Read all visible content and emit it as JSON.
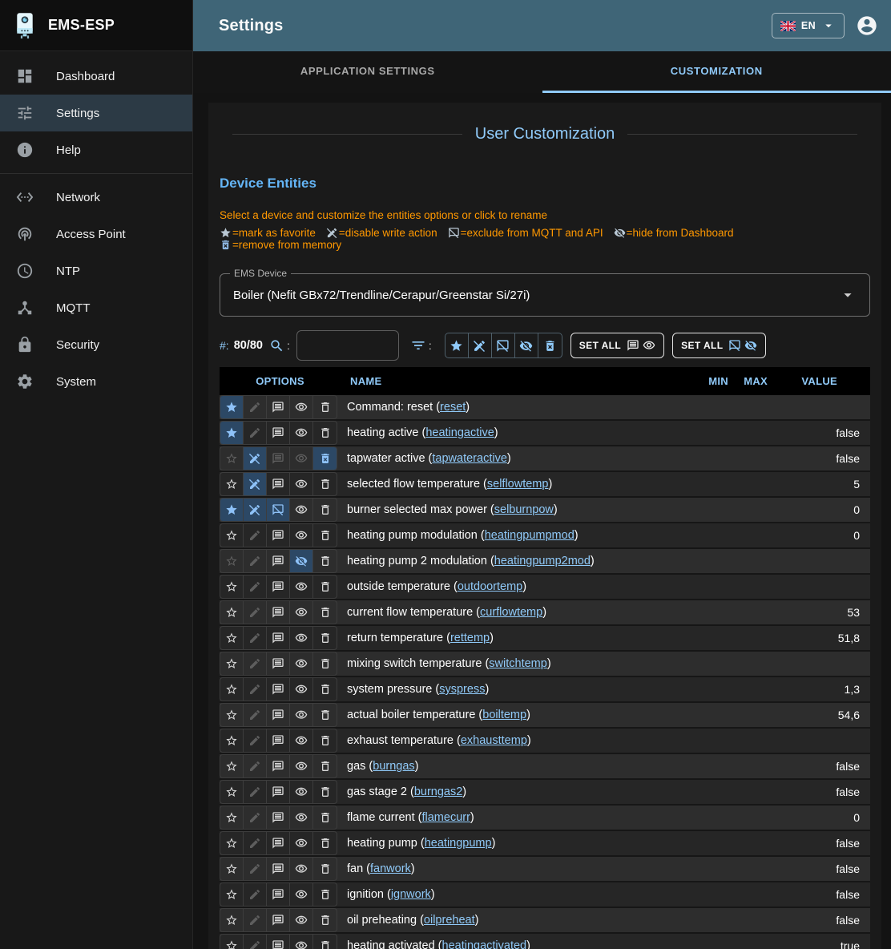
{
  "app": {
    "title": "EMS-ESP"
  },
  "topbar": {
    "title": "Settings",
    "language": "EN"
  },
  "sidebar": {
    "items": [
      {
        "label": "Dashboard",
        "icon": "dashboard-icon",
        "active": false,
        "divider_before": false
      },
      {
        "label": "Settings",
        "icon": "tune-icon",
        "active": true,
        "divider_before": false
      },
      {
        "label": "Help",
        "icon": "info-icon",
        "active": false,
        "divider_before": false
      },
      {
        "label": "Network",
        "icon": "network-icon",
        "active": false,
        "divider_before": true
      },
      {
        "label": "Access Point",
        "icon": "access-point-icon",
        "active": false,
        "divider_before": false
      },
      {
        "label": "NTP",
        "icon": "ntp-icon",
        "active": false,
        "divider_before": false
      },
      {
        "label": "MQTT",
        "icon": "mqtt-icon",
        "active": false,
        "divider_before": false
      },
      {
        "label": "Security",
        "icon": "security-icon",
        "active": false,
        "divider_before": false
      },
      {
        "label": "System",
        "icon": "system-icon",
        "active": false,
        "divider_before": false
      }
    ]
  },
  "tabs": [
    {
      "label": "APPLICATION SETTINGS",
      "active": false
    },
    {
      "label": "CUSTOMIZATION",
      "active": true
    }
  ],
  "page": {
    "title": "User Customization",
    "section_title": "Device Entities",
    "hint": "Select a device and customize the entities options or click to rename",
    "legend": [
      {
        "icon": "star-icon",
        "label": "=mark as favorite"
      },
      {
        "icon": "edit-off-icon",
        "label": "=disable write action"
      },
      {
        "icon": "comment-off-icon",
        "label": "=exclude from MQTT and API"
      },
      {
        "icon": "eye-off-icon",
        "label": "=hide from Dashboard"
      },
      {
        "icon": "delete-forever-icon",
        "label": "=remove from memory"
      }
    ],
    "device_select": {
      "label": "EMS Device",
      "value": "Boiler (Nefit GBx72/Trendline/Cerapur/Greenstar Si/27i)"
    },
    "toolbar": {
      "count_label": "#:",
      "count": "80/80",
      "search_colon": ":",
      "filter_colon": ":",
      "search_value": "",
      "toggles": [
        "star-icon",
        "edit-off-icon",
        "comment-off-icon",
        "eye-off-icon",
        "delete-forever-icon"
      ],
      "set_all_buttons": [
        {
          "label": "SET ALL",
          "icons": [
            "comment-icon",
            "eye-icon"
          ],
          "style": "plain"
        },
        {
          "label": "SET ALL",
          "icons": [
            "comment-off-icon",
            "eye-off-icon"
          ],
          "style": "accent"
        }
      ]
    }
  },
  "table": {
    "headers": {
      "options": "OPTIONS",
      "name": "NAME",
      "min": "MIN",
      "max": "MAX",
      "value": "VALUE"
    },
    "rows": [
      {
        "name": "Command: reset",
        "shortname": "reset",
        "min": "",
        "max": "",
        "value": "",
        "opts": {
          "fav": "active",
          "write": "dim",
          "mqtt": "normal",
          "vis": "normal",
          "mem": "normal"
        }
      },
      {
        "name": "heating active",
        "shortname": "heatingactive",
        "min": "",
        "max": "",
        "value": "false",
        "opts": {
          "fav": "active",
          "write": "dim",
          "mqtt": "normal",
          "vis": "normal",
          "mem": "normal"
        }
      },
      {
        "name": "tapwater active",
        "shortname": "tapwateractive",
        "min": "",
        "max": "",
        "value": "false",
        "opts": {
          "fav": "dim",
          "write": "blocked",
          "mqtt": "dim",
          "vis": "dim",
          "mem": "removed"
        }
      },
      {
        "name": "selected flow temperature",
        "shortname": "selflowtemp",
        "min": "",
        "max": "",
        "value": "5",
        "opts": {
          "fav": "normal",
          "write": "blocked",
          "mqtt": "normal",
          "vis": "normal",
          "mem": "normal"
        }
      },
      {
        "name": "burner selected max power",
        "shortname": "selburnpow",
        "min": "",
        "max": "",
        "value": "0",
        "opts": {
          "fav": "active",
          "write": "blocked",
          "mqtt": "excluded",
          "vis": "normal",
          "mem": "normal"
        }
      },
      {
        "name": "heating pump modulation",
        "shortname": "heatingpumpmod",
        "min": "",
        "max": "",
        "value": "0",
        "opts": {
          "fav": "normal",
          "write": "dim",
          "mqtt": "normal",
          "vis": "normal",
          "mem": "normal"
        }
      },
      {
        "name": "heating pump 2 modulation",
        "shortname": "heatingpump2mod",
        "min": "",
        "max": "",
        "value": "",
        "opts": {
          "fav": "dim",
          "write": "dim",
          "mqtt": "normal",
          "vis": "hidden",
          "mem": "normal"
        }
      },
      {
        "name": "outside temperature",
        "shortname": "outdoortemp",
        "min": "",
        "max": "",
        "value": "",
        "opts": {
          "fav": "normal",
          "write": "dim",
          "mqtt": "normal",
          "vis": "normal",
          "mem": "normal"
        }
      },
      {
        "name": "current flow temperature",
        "shortname": "curflowtemp",
        "min": "",
        "max": "",
        "value": "53",
        "opts": {
          "fav": "normal",
          "write": "dim",
          "mqtt": "normal",
          "vis": "normal",
          "mem": "normal"
        }
      },
      {
        "name": "return temperature",
        "shortname": "rettemp",
        "min": "",
        "max": "",
        "value": "51,8",
        "opts": {
          "fav": "normal",
          "write": "dim",
          "mqtt": "normal",
          "vis": "normal",
          "mem": "normal"
        }
      },
      {
        "name": "mixing switch temperature",
        "shortname": "switchtemp",
        "min": "",
        "max": "",
        "value": "",
        "opts": {
          "fav": "normal",
          "write": "dim",
          "mqtt": "normal",
          "vis": "normal",
          "mem": "normal"
        }
      },
      {
        "name": "system pressure",
        "shortname": "syspress",
        "min": "",
        "max": "",
        "value": "1,3",
        "opts": {
          "fav": "normal",
          "write": "dim",
          "mqtt": "normal",
          "vis": "normal",
          "mem": "normal"
        }
      },
      {
        "name": "actual boiler temperature",
        "shortname": "boiltemp",
        "min": "",
        "max": "",
        "value": "54,6",
        "opts": {
          "fav": "normal",
          "write": "dim",
          "mqtt": "normal",
          "vis": "normal",
          "mem": "normal"
        }
      },
      {
        "name": "exhaust temperature",
        "shortname": "exhausttemp",
        "min": "",
        "max": "",
        "value": "",
        "opts": {
          "fav": "normal",
          "write": "dim",
          "mqtt": "normal",
          "vis": "normal",
          "mem": "normal"
        }
      },
      {
        "name": "gas",
        "shortname": "burngas",
        "min": "",
        "max": "",
        "value": "false",
        "opts": {
          "fav": "normal",
          "write": "dim",
          "mqtt": "normal",
          "vis": "normal",
          "mem": "normal"
        }
      },
      {
        "name": "gas stage 2",
        "shortname": "burngas2",
        "min": "",
        "max": "",
        "value": "false",
        "opts": {
          "fav": "normal",
          "write": "dim",
          "mqtt": "normal",
          "vis": "normal",
          "mem": "normal"
        }
      },
      {
        "name": "flame current",
        "shortname": "flamecurr",
        "min": "",
        "max": "",
        "value": "0",
        "opts": {
          "fav": "normal",
          "write": "dim",
          "mqtt": "normal",
          "vis": "normal",
          "mem": "normal"
        }
      },
      {
        "name": "heating pump",
        "shortname": "heatingpump",
        "min": "",
        "max": "",
        "value": "false",
        "opts": {
          "fav": "normal",
          "write": "dim",
          "mqtt": "normal",
          "vis": "normal",
          "mem": "normal"
        }
      },
      {
        "name": "fan",
        "shortname": "fanwork",
        "min": "",
        "max": "",
        "value": "false",
        "opts": {
          "fav": "normal",
          "write": "dim",
          "mqtt": "normal",
          "vis": "normal",
          "mem": "normal"
        }
      },
      {
        "name": "ignition",
        "shortname": "ignwork",
        "min": "",
        "max": "",
        "value": "false",
        "opts": {
          "fav": "normal",
          "write": "dim",
          "mqtt": "normal",
          "vis": "normal",
          "mem": "normal"
        }
      },
      {
        "name": "oil preheating",
        "shortname": "oilpreheat",
        "min": "",
        "max": "",
        "value": "false",
        "opts": {
          "fav": "normal",
          "write": "dim",
          "mqtt": "normal",
          "vis": "normal",
          "mem": "normal"
        }
      },
      {
        "name": "heating activated",
        "shortname": "heatingactivated",
        "min": "",
        "max": "",
        "value": "true",
        "opts": {
          "fav": "normal",
          "write": "dim",
          "mqtt": "normal",
          "vis": "normal",
          "mem": "normal"
        }
      },
      {
        "name": "",
        "shortname": "",
        "min": "",
        "max": "",
        "value": "",
        "opts": {
          "fav": "normal",
          "write": "dim",
          "mqtt": "normal",
          "vis": "normal",
          "mem": "normal"
        }
      }
    ]
  },
  "colors": {
    "accent": "#90caf9",
    "section_heading": "#64b5f6",
    "warning_text": "#ff9800",
    "topbar": "#3f6577",
    "active_option_cell": "#2c4865"
  }
}
